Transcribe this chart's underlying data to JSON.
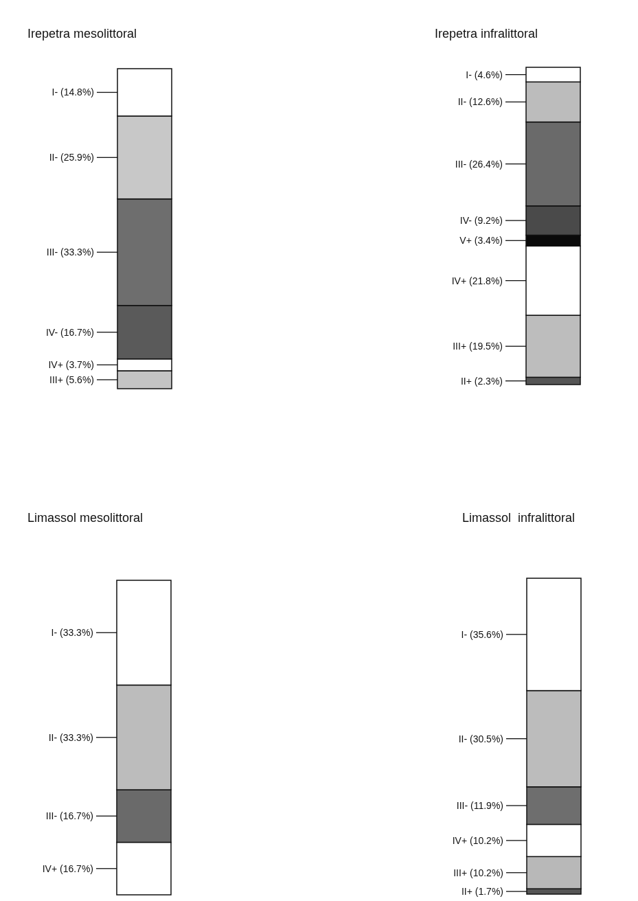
{
  "chart_data": [
    {
      "type": "bar",
      "title": "Irepetra mesolittoral",
      "categories": [
        null
      ],
      "stacked": true,
      "series": [
        {
          "color": "#c4c4c4",
          "values": [
            5.6
          ],
          "value_labels": [
            "III+ (5.6%)"
          ]
        },
        {
          "color": "#ffffff",
          "values": [
            3.7
          ],
          "value_labels": [
            "IV+ (3.7%)"
          ]
        },
        {
          "color": "#5a5a5a",
          "values": [
            16.7
          ],
          "value_labels": [
            "IV- (16.7%)"
          ]
        },
        {
          "color": "#6e6e6e",
          "values": [
            33.3
          ],
          "value_labels": [
            "III- (33.3%)"
          ]
        },
        {
          "color": "#c8c8c8",
          "values": [
            25.9
          ],
          "value_labels": [
            "II- (25.9%)"
          ]
        },
        {
          "color": "#ffffff",
          "values": [
            14.8
          ],
          "value_labels": [
            "I- (14.8%)"
          ]
        }
      ]
    },
    {
      "type": "bar",
      "title": "Irepetra infralittoral",
      "categories": [
        null
      ],
      "stacked": true,
      "series": [
        {
          "color": "#555555",
          "values": [
            2.3
          ],
          "value_labels": [
            "II+ (2.3%)"
          ]
        },
        {
          "color": "#bdbdbd",
          "values": [
            19.5
          ],
          "value_labels": [
            "III+ (19.5%)"
          ]
        },
        {
          "color": "#ffffff",
          "values": [
            21.8
          ],
          "value_labels": [
            "IV+ (21.8%)"
          ]
        },
        {
          "color": "#0a0a0a",
          "values": [
            3.4
          ],
          "value_labels": [
            "V+ (3.4%)"
          ]
        },
        {
          "color": "#4a4a4a",
          "values": [
            9.2
          ],
          "value_labels": [
            "IV- (9.2%)"
          ]
        },
        {
          "color": "#6a6a6a",
          "values": [
            26.4
          ],
          "value_labels": [
            "III- (26.4%)"
          ]
        },
        {
          "color": "#bcbcbc",
          "values": [
            12.6
          ],
          "value_labels": [
            "II- (12.6%)"
          ]
        },
        {
          "color": "#ffffff",
          "values": [
            4.6
          ],
          "value_labels": [
            "I- (4.6%)"
          ]
        }
      ]
    },
    {
      "type": "bar",
      "title": "Limassol mesolittoral",
      "categories": [
        null
      ],
      "stacked": true,
      "series": [
        {
          "color": "#ffffff",
          "values": [
            16.7
          ],
          "value_labels": [
            "IV+ (16.7%)"
          ]
        },
        {
          "color": "#6a6a6a",
          "values": [
            16.7
          ],
          "value_labels": [
            "III- (16.7%)"
          ]
        },
        {
          "color": "#bcbcbc",
          "values": [
            33.3
          ],
          "value_labels": [
            "II- (33.3%)"
          ]
        },
        {
          "color": "#ffffff",
          "values": [
            33.3
          ],
          "value_labels": [
            "I- (33.3%)"
          ]
        }
      ]
    },
    {
      "type": "bar",
      "title": "Limassol  infralittoral",
      "categories": [
        null
      ],
      "stacked": true,
      "series": [
        {
          "color": "#555555",
          "values": [
            1.7
          ],
          "value_labels": [
            "II+ (1.7%)"
          ]
        },
        {
          "color": "#b8b8b8",
          "values": [
            10.2
          ],
          "value_labels": [
            "III+ (10.2%)"
          ]
        },
        {
          "color": "#ffffff",
          "values": [
            10.2
          ],
          "value_labels": [
            "IV+ (10.2%)"
          ]
        },
        {
          "color": "#6e6e6e",
          "values": [
            11.9
          ],
          "value_labels": [
            "III- (11.9%)"
          ]
        },
        {
          "color": "#bcbcbc",
          "values": [
            30.5
          ],
          "value_labels": [
            "II- (30.5%)"
          ]
        },
        {
          "color": "#ffffff",
          "values": [
            35.6
          ],
          "value_labels": [
            "I- (35.6%)"
          ]
        }
      ]
    }
  ]
}
